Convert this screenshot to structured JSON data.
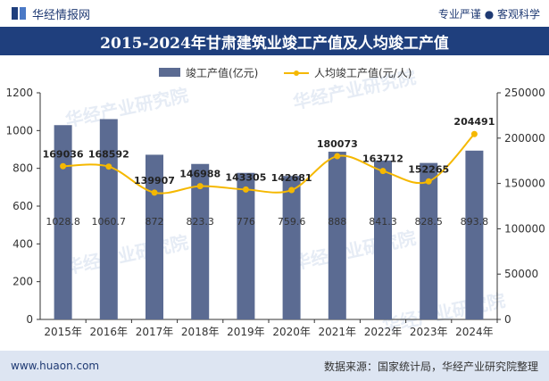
{
  "header": {
    "brand": "华经情报网",
    "slogan": "专业严谨 ● 客观科学"
  },
  "colors": {
    "bar": "#5b6b92",
    "line": "#f5b800",
    "title_bg": "#1f3f7d",
    "footer_bg": "#dde5f2"
  },
  "watermarks": [
    "华经产业研究院",
    "www.huaon.com"
  ],
  "footer": {
    "url": "www.huaon.com",
    "source": "数据来源：国家统计局，华经产业研究院整理"
  },
  "chart_data": {
    "type": "bar",
    "title": "2015-2024年甘肃建筑业竣工产值及人均竣工产值",
    "categories": [
      "2015年",
      "2016年",
      "2017年",
      "2018年",
      "2019年",
      "2020年",
      "2021年",
      "2022年",
      "2023年",
      "2024年"
    ],
    "series": [
      {
        "name": "竣工产值(亿元)",
        "type": "bar",
        "axis": "left",
        "values": [
          1028.8,
          1060.7,
          872,
          823.3,
          776,
          759.6,
          888,
          841.3,
          828.5,
          893.8
        ],
        "labels": [
          "1028.8",
          "1060.7",
          "872",
          "823.3",
          "776",
          "759.6",
          "888",
          "841.3",
          "828.5",
          "893.8"
        ]
      },
      {
        "name": "人均竣工产值(元/人)",
        "type": "line",
        "axis": "right",
        "values": [
          169036,
          168592,
          139907,
          146988,
          143305,
          142681,
          180073,
          163712,
          152265,
          204491
        ],
        "labels": [
          "169036",
          "168592",
          "139907",
          "146988",
          "143305",
          "142681",
          "180073",
          "163712",
          "152265",
          "204491"
        ]
      }
    ],
    "y_left": {
      "min": 0,
      "max": 1200,
      "ticks": [
        "0",
        "200",
        "400",
        "600",
        "800",
        "1000",
        "1200"
      ]
    },
    "y_right": {
      "min": 0,
      "max": 250000,
      "ticks": [
        "0",
        "50000",
        "100000",
        "150000",
        "200000",
        "250000"
      ]
    },
    "legend_position": "top-center",
    "grid": false
  }
}
